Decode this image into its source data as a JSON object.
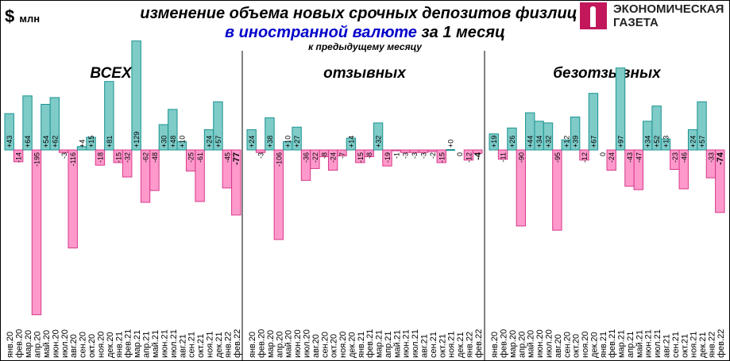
{
  "header": {
    "unit_symbol": "$",
    "unit_label": "млн",
    "title_line1": "изменение объема новых срочных депозитов физлиц",
    "title_line2_highlight": "в иностранной валюте",
    "title_line2_rest": " за 1 месяц",
    "subtitle": "к предыдущему месяцу",
    "logo_line1": "ЭКОНОМИЧЕСКАЯ",
    "logo_line2": "ГАЗЕТА"
  },
  "colors": {
    "positive": "#7ecbc8",
    "positive_border": "#1a9490",
    "negative": "#ff99cc",
    "negative_border": "#d63a8a",
    "highlight_text": "#0000cc"
  },
  "chart_data": [
    {
      "type": "bar",
      "title": "ВСЕХ",
      "categories": [
        "янв.20",
        "фев.20",
        "мар.20",
        "апр.20",
        "май.20",
        "июн.20",
        "июл.20",
        "авг.20",
        "сен.20",
        "окт.20",
        "ноя.20",
        "дек.20",
        "янв.21",
        "фев.21",
        "мар.21",
        "апр.21",
        "май.21",
        "июн.21",
        "июл.21",
        "авг.21",
        "сен.21",
        "окт.21",
        "ноя.21",
        "дек.21",
        "янв.22",
        "фев.22"
      ],
      "values": [
        43,
        -14,
        64,
        -195,
        54,
        62,
        -3,
        -116,
        4,
        15,
        -18,
        81,
        -15,
        -32,
        129,
        -62,
        -48,
        30,
        48,
        10,
        -25,
        -61,
        24,
        57,
        -45,
        -77
      ],
      "labels": [
        "+43",
        "-14",
        "+64",
        "-195",
        "+54",
        "+62",
        "-3",
        "-116",
        "+4",
        "+15",
        "-18",
        "+81",
        "-15",
        "-32",
        "+129",
        "-62",
        "-48",
        "+30",
        "+48",
        "+10",
        "-25",
        "-61",
        "+24",
        "+57",
        "-45",
        "-77"
      ]
    },
    {
      "type": "bar",
      "title": "отзывных",
      "categories": [
        "янв.20",
        "фев.20",
        "мар.20",
        "апр.20",
        "май.20",
        "июн.20",
        "июл.20",
        "авг.20",
        "сен.20",
        "окт.20",
        "ноя.20",
        "дек.20",
        "янв.21",
        "фев.21",
        "мар.21",
        "апр.21",
        "май.21",
        "июн.21",
        "июл.21",
        "авг.21",
        "сен.21",
        "окт.21",
        "ноя.21",
        "дек.21",
        "янв.22",
        "фев.22"
      ],
      "values": [
        24,
        -3,
        38,
        -106,
        10,
        27,
        -36,
        -22,
        -8,
        -24,
        -7,
        14,
        -15,
        -8,
        32,
        -19,
        -1,
        -3,
        -3,
        -3,
        -2,
        -15,
        0,
        0,
        -12,
        -4
      ],
      "labels": [
        "+24",
        "-3",
        "+38",
        "-106",
        "+10",
        "+27",
        "-36",
        "-22",
        "-8",
        "-24",
        "-7",
        "+14",
        "-15",
        "-8",
        "+32",
        "-19",
        "-1",
        "-3",
        "-3",
        "-3",
        "-2",
        "-15",
        "+0",
        "0",
        "-12",
        "-4"
      ]
    },
    {
      "type": "bar",
      "title": "безотзывных",
      "categories": [
        "янв.20",
        "фев.20",
        "мар.20",
        "апр.20",
        "май.20",
        "июн.20",
        "июл.20",
        "авг.20",
        "сен.20",
        "окт.20",
        "ноя.20",
        "дек.20",
        "янв.21",
        "фев.21",
        "мар.21",
        "апр.21",
        "май.21",
        "июн.21",
        "июл.21",
        "авг.21",
        "сен.21",
        "окт.21",
        "ноя.21",
        "дек.21",
        "янв.22",
        "фев.22"
      ],
      "values": [
        19,
        -11,
        26,
        -90,
        44,
        34,
        32,
        -95,
        12,
        39,
        -12,
        67,
        0,
        -24,
        97,
        -43,
        -47,
        34,
        52,
        13,
        -23,
        -46,
        24,
        57,
        -33,
        -74
      ],
      "labels": [
        "+19",
        "-11",
        "+26",
        "-90",
        "+44",
        "+34",
        "+32",
        "-95",
        "+12",
        "+39",
        "-12",
        "+67",
        "0",
        "-24",
        "+97",
        "-43",
        "-47",
        "+34",
        "+52",
        "+13",
        "-23",
        "-46",
        "+24",
        "+57",
        "-33",
        "-74"
      ]
    }
  ]
}
